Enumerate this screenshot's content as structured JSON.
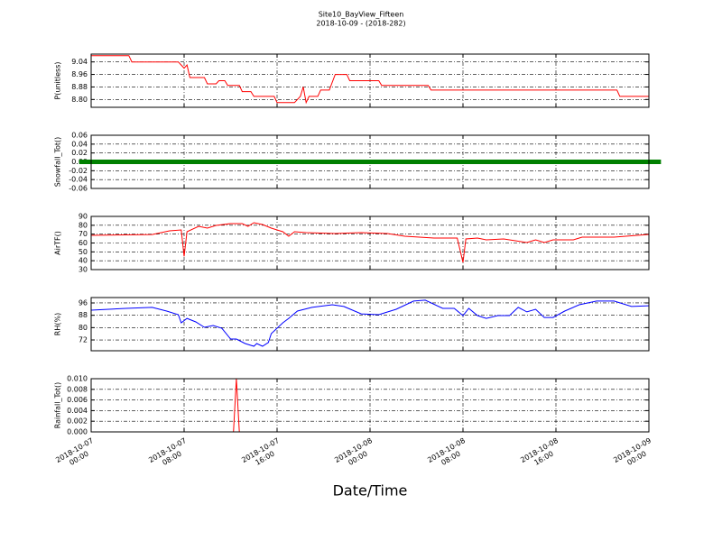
{
  "title": "Site10_BayView_Fifteen",
  "subtitle": "2018-10-09 - (2018-282)",
  "xlabel": "Date/Time",
  "x_axis": {
    "xlim": [
      "2018-10-07 00:00",
      "2018-10-09 00:00"
    ],
    "xticks": [
      {
        "value": "2018-10-07 00:00",
        "label": "2018-10-07\n00:00"
      },
      {
        "value": "2018-10-07 08:00",
        "label": "2018-10-07\n08:00"
      },
      {
        "value": "2018-10-07 16:00",
        "label": "2018-10-07\n16:00"
      },
      {
        "value": "2018-10-08 00:00",
        "label": "2018-10-08\n00:00"
      },
      {
        "value": "2018-10-08 08:00",
        "label": "2018-10-08\n08:00"
      },
      {
        "value": "2018-10-08 16:00",
        "label": "2018-10-08\n16:00"
      },
      {
        "value": "2018-10-09 00:00",
        "label": "2018-10-09\n00:00"
      }
    ],
    "grid": true
  },
  "chart_data": [
    {
      "type": "line",
      "ylabel": "P(unitless)",
      "color": "#ff0000",
      "grid": true,
      "ylim": [
        8.75,
        9.09
      ],
      "yticks": [
        9.04,
        8.96,
        8.88,
        {
          "value": 8.8,
          "label": "8.80"
        }
      ],
      "x": [
        "2018-10-07 00:00",
        "2018-10-07 03:15",
        "2018-10-07 03:30",
        "2018-10-07 07:30",
        "2018-10-07 07:45",
        "2018-10-07 08:00",
        "2018-10-07 08:15",
        "2018-10-07 08:30",
        "2018-10-07 09:45",
        "2018-10-07 10:00",
        "2018-10-07 10:45",
        "2018-10-07 11:00",
        "2018-10-07 11:30",
        "2018-10-07 11:45",
        "2018-10-07 12:45",
        "2018-10-07 13:00",
        "2018-10-07 13:45",
        "2018-10-07 14:00",
        "2018-10-07 15:45",
        "2018-10-07 16:00",
        "2018-10-07 17:30",
        "2018-10-07 18:00",
        "2018-10-07 18:15",
        "2018-10-07 18:30",
        "2018-10-07 18:45",
        "2018-10-07 19:30",
        "2018-10-07 19:45",
        "2018-10-07 20:30",
        "2018-10-07 21:00",
        "2018-10-07 22:00",
        "2018-10-07 22:15",
        "2018-10-08 00:45",
        "2018-10-08 01:00",
        "2018-10-08 05:00",
        "2018-10-08 05:15",
        "2018-10-08 21:15",
        "2018-10-08 21:30",
        "2018-10-09 00:00"
      ],
      "values": [
        9.08,
        9.08,
        9.04,
        9.04,
        9.02,
        9.0,
        9.02,
        8.94,
        8.94,
        8.9,
        8.9,
        8.92,
        8.92,
        8.89,
        8.89,
        8.85,
        8.85,
        8.82,
        8.82,
        8.78,
        8.78,
        8.82,
        8.88,
        8.78,
        8.82,
        8.82,
        8.86,
        8.86,
        8.96,
        8.96,
        8.92,
        8.92,
        8.89,
        8.89,
        8.86,
        8.86,
        8.82,
        8.82
      ]
    },
    {
      "type": "scatter",
      "ylabel": "Snowfall_Tot()",
      "color": "#008000",
      "grid": true,
      "ylim": [
        -0.06,
        0.06
      ],
      "yticks": [
        0.06,
        0.04,
        0.02,
        {
          "value": 0,
          "label": "0.00"
        },
        -0.02,
        -0.04,
        -0.06
      ],
      "x": [
        "2018-10-07 00:00",
        "2018-10-07 02:00",
        "2018-10-07 04:00",
        "2018-10-07 06:00",
        "2018-10-07 08:00",
        "2018-10-07 10:00",
        "2018-10-07 12:00",
        "2018-10-07 14:00",
        "2018-10-07 16:00",
        "2018-10-07 18:00",
        "2018-10-07 20:00",
        "2018-10-07 22:00",
        "2018-10-08 00:00",
        "2018-10-08 02:00",
        "2018-10-08 04:00",
        "2018-10-08 06:00",
        "2018-10-08 08:00",
        "2018-10-08 10:00",
        "2018-10-08 12:00",
        "2018-10-08 14:00",
        "2018-10-08 16:00",
        "2018-10-08 18:00",
        "2018-10-08 20:00",
        "2018-10-08 22:00",
        "2018-10-09 00:00"
      ],
      "values": [
        0,
        0,
        0,
        0,
        0,
        0,
        0,
        0,
        0,
        0,
        0,
        0,
        0,
        0,
        0,
        0,
        0,
        0,
        0,
        0,
        0,
        0,
        0,
        0,
        0
      ]
    },
    {
      "type": "line",
      "ylabel": "AirTF()",
      "color": "#ff0000",
      "grid": true,
      "ylim": [
        30,
        90
      ],
      "yticks": [
        90,
        80,
        70,
        60,
        50,
        40,
        30
      ],
      "x": [
        "2018-10-07 00:00",
        "2018-10-07 05:15",
        "2018-10-07 06:45",
        "2018-10-07 07:45",
        "2018-10-07 08:00",
        "2018-10-07 08:15",
        "2018-10-07 09:15",
        "2018-10-07 10:00",
        "2018-10-07 10:45",
        "2018-10-07 12:00",
        "2018-10-07 13:00",
        "2018-10-07 13:30",
        "2018-10-07 14:00",
        "2018-10-07 14:45",
        "2018-10-07 15:30",
        "2018-10-07 16:30",
        "2018-10-07 17:00",
        "2018-10-07 17:30",
        "2018-10-07 18:30",
        "2018-10-07 21:00",
        "2018-10-07 23:15",
        "2018-10-08 01:30",
        "2018-10-08 03:00",
        "2018-10-08 05:30",
        "2018-10-08 07:30",
        "2018-10-08 08:00",
        "2018-10-08 08:15",
        "2018-10-08 09:15",
        "2018-10-08 10:00",
        "2018-10-08 11:30",
        "2018-10-08 13:30",
        "2018-10-08 14:15",
        "2018-10-08 15:00",
        "2018-10-08 15:45",
        "2018-10-08 17:30",
        "2018-10-08 18:15",
        "2018-10-08 21:00",
        "2018-10-09 00:00"
      ],
      "values": [
        68.6,
        69.6,
        73.7,
        74.7,
        45,
        72.7,
        78.8,
        76.8,
        79.8,
        81.9,
        81.9,
        78.8,
        82.9,
        80.8,
        76.8,
        72.7,
        67.6,
        72.7,
        71.7,
        70.7,
        71.7,
        70.7,
        67.6,
        65.6,
        65.6,
        38.1,
        64.6,
        65.6,
        63.6,
        64.6,
        60.5,
        63.6,
        60.5,
        63.6,
        63.6,
        66.6,
        66.6,
        69.7
      ]
    },
    {
      "type": "line",
      "ylabel": "RH(%)",
      "color": "#0000ff",
      "grid": true,
      "ylim": [
        65,
        99.5
      ],
      "yticks": [
        96,
        88,
        80,
        72
      ],
      "x": [
        "2018-10-07 00:00",
        "2018-10-07 03:00",
        "2018-10-07 05:15",
        "2018-10-07 06:30",
        "2018-10-07 07:30",
        "2018-10-07 07:45",
        "2018-10-07 08:15",
        "2018-10-07 09:00",
        "2018-10-07 09:45",
        "2018-10-07 10:30",
        "2018-10-07 11:15",
        "2018-10-07 12:00",
        "2018-10-07 12:30",
        "2018-10-07 13:15",
        "2018-10-07 14:00",
        "2018-10-07 14:15",
        "2018-10-07 14:45",
        "2018-10-07 15:15",
        "2018-10-07 15:30",
        "2018-10-07 16:30",
        "2018-10-07 17:00",
        "2018-10-07 17:45",
        "2018-10-07 19:00",
        "2018-10-07 20:45",
        "2018-10-07 21:45",
        "2018-10-07 23:15",
        "2018-10-08 00:45",
        "2018-10-08 02:15",
        "2018-10-08 03:45",
        "2018-10-08 04:45",
        "2018-10-08 06:15",
        "2018-10-08 07:15",
        "2018-10-08 08:00",
        "2018-10-08 08:30",
        "2018-10-08 09:15",
        "2018-10-08 10:00",
        "2018-10-08 11:00",
        "2018-10-08 12:00",
        "2018-10-08 12:45",
        "2018-10-08 13:30",
        "2018-10-08 14:15",
        "2018-10-08 15:00",
        "2018-10-08 15:45",
        "2018-10-08 16:45",
        "2018-10-08 18:00",
        "2018-10-08 19:30",
        "2018-10-08 21:00",
        "2018-10-08 22:30",
        "2018-10-09 00:00"
      ],
      "values": [
        91.3,
        92.5,
        93.1,
        90.7,
        88.4,
        83.1,
        86.0,
        83.7,
        80.2,
        81.4,
        79.6,
        72.6,
        72.6,
        69.7,
        67.9,
        69.7,
        67.9,
        70.3,
        76.1,
        83.1,
        86.0,
        90.7,
        93.1,
        94.8,
        93.7,
        88.9,
        88.4,
        91.9,
        97.2,
        97.8,
        92.5,
        92.5,
        87.8,
        92.5,
        87.8,
        86.0,
        87.8,
        87.8,
        93.1,
        90.2,
        91.9,
        86.6,
        86.6,
        90.7,
        94.8,
        97.2,
        97.2,
        93.7,
        94.2
      ]
    },
    {
      "type": "line",
      "ylabel": "Rainfall_Tot()",
      "color": "#ff0000",
      "grid": true,
      "ylim": [
        0,
        0.01
      ],
      "yticks": [
        {
          "value": 0.01,
          "label": "0.010"
        },
        0.008,
        0.006,
        0.004,
        0.002,
        {
          "value": 0,
          "label": "0.000"
        }
      ],
      "x": [
        "2018-10-07 00:00",
        "2018-10-07 12:15",
        "2018-10-07 12:30",
        "2018-10-07 12:45",
        "2018-10-09 00:00"
      ],
      "values": [
        0,
        0,
        0.01,
        0,
        0
      ]
    }
  ]
}
